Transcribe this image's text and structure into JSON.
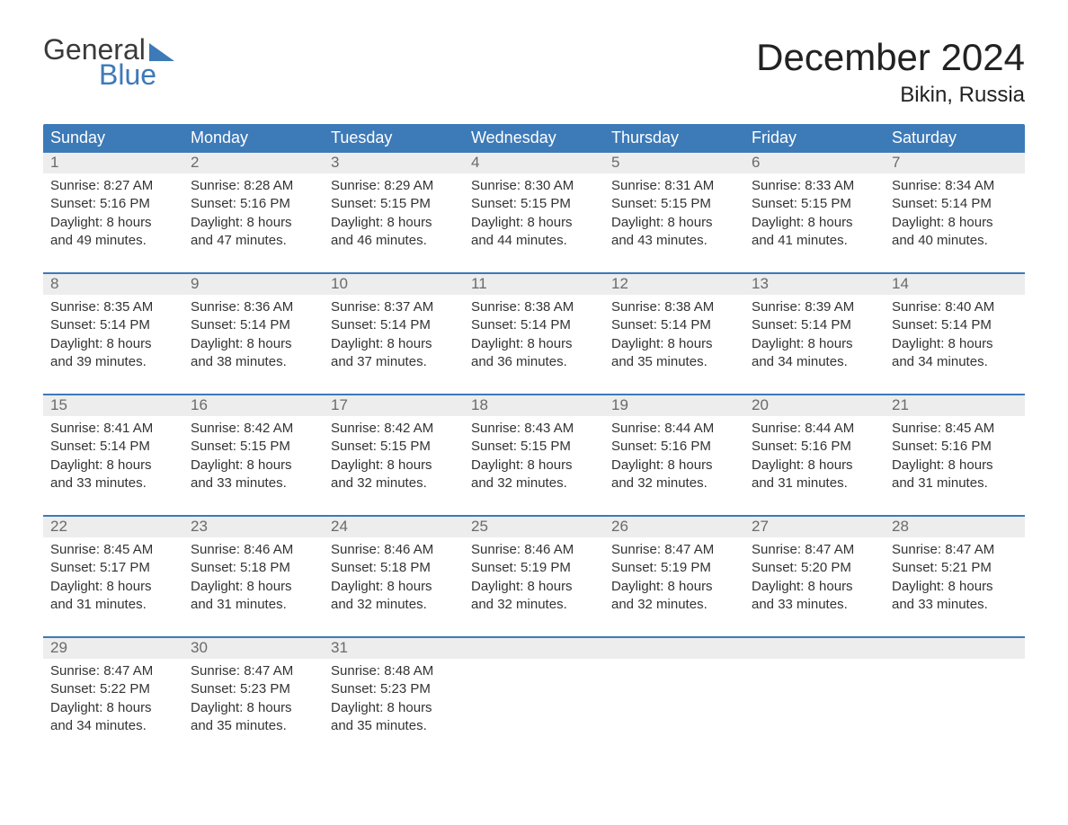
{
  "logo": {
    "text1": "General",
    "text2": "Blue",
    "tri_color": "#3d7ab8",
    "text1_color": "#3a3a3a"
  },
  "title": {
    "month": "December 2024",
    "location": "Bikin, Russia"
  },
  "colors": {
    "header_bg": "#3d7ab8",
    "header_fg": "#ffffff",
    "daynum_bg": "#ededed",
    "daynum_fg": "#6a6a6a",
    "divider": "#3d7ab8",
    "body_text": "#333333",
    "page_bg": "#ffffff"
  },
  "fonts": {
    "month_size_pt": 32,
    "loc_size_pt": 18,
    "weekday_size_pt": 14,
    "body_size_pt": 11
  },
  "weekdays": [
    "Sunday",
    "Monday",
    "Tuesday",
    "Wednesday",
    "Thursday",
    "Friday",
    "Saturday"
  ],
  "weeks": [
    [
      {
        "n": "1",
        "sr": "8:27 AM",
        "ss": "5:16 PM",
        "dl": "8 hours and 49 minutes."
      },
      {
        "n": "2",
        "sr": "8:28 AM",
        "ss": "5:16 PM",
        "dl": "8 hours and 47 minutes."
      },
      {
        "n": "3",
        "sr": "8:29 AM",
        "ss": "5:15 PM",
        "dl": "8 hours and 46 minutes."
      },
      {
        "n": "4",
        "sr": "8:30 AM",
        "ss": "5:15 PM",
        "dl": "8 hours and 44 minutes."
      },
      {
        "n": "5",
        "sr": "8:31 AM",
        "ss": "5:15 PM",
        "dl": "8 hours and 43 minutes."
      },
      {
        "n": "6",
        "sr": "8:33 AM",
        "ss": "5:15 PM",
        "dl": "8 hours and 41 minutes."
      },
      {
        "n": "7",
        "sr": "8:34 AM",
        "ss": "5:14 PM",
        "dl": "8 hours and 40 minutes."
      }
    ],
    [
      {
        "n": "8",
        "sr": "8:35 AM",
        "ss": "5:14 PM",
        "dl": "8 hours and 39 minutes."
      },
      {
        "n": "9",
        "sr": "8:36 AM",
        "ss": "5:14 PM",
        "dl": "8 hours and 38 minutes."
      },
      {
        "n": "10",
        "sr": "8:37 AM",
        "ss": "5:14 PM",
        "dl": "8 hours and 37 minutes."
      },
      {
        "n": "11",
        "sr": "8:38 AM",
        "ss": "5:14 PM",
        "dl": "8 hours and 36 minutes."
      },
      {
        "n": "12",
        "sr": "8:38 AM",
        "ss": "5:14 PM",
        "dl": "8 hours and 35 minutes."
      },
      {
        "n": "13",
        "sr": "8:39 AM",
        "ss": "5:14 PM",
        "dl": "8 hours and 34 minutes."
      },
      {
        "n": "14",
        "sr": "8:40 AM",
        "ss": "5:14 PM",
        "dl": "8 hours and 34 minutes."
      }
    ],
    [
      {
        "n": "15",
        "sr": "8:41 AM",
        "ss": "5:14 PM",
        "dl": "8 hours and 33 minutes."
      },
      {
        "n": "16",
        "sr": "8:42 AM",
        "ss": "5:15 PM",
        "dl": "8 hours and 33 minutes."
      },
      {
        "n": "17",
        "sr": "8:42 AM",
        "ss": "5:15 PM",
        "dl": "8 hours and 32 minutes."
      },
      {
        "n": "18",
        "sr": "8:43 AM",
        "ss": "5:15 PM",
        "dl": "8 hours and 32 minutes."
      },
      {
        "n": "19",
        "sr": "8:44 AM",
        "ss": "5:16 PM",
        "dl": "8 hours and 32 minutes."
      },
      {
        "n": "20",
        "sr": "8:44 AM",
        "ss": "5:16 PM",
        "dl": "8 hours and 31 minutes."
      },
      {
        "n": "21",
        "sr": "8:45 AM",
        "ss": "5:16 PM",
        "dl": "8 hours and 31 minutes."
      }
    ],
    [
      {
        "n": "22",
        "sr": "8:45 AM",
        "ss": "5:17 PM",
        "dl": "8 hours and 31 minutes."
      },
      {
        "n": "23",
        "sr": "8:46 AM",
        "ss": "5:18 PM",
        "dl": "8 hours and 31 minutes."
      },
      {
        "n": "24",
        "sr": "8:46 AM",
        "ss": "5:18 PM",
        "dl": "8 hours and 32 minutes."
      },
      {
        "n": "25",
        "sr": "8:46 AM",
        "ss": "5:19 PM",
        "dl": "8 hours and 32 minutes."
      },
      {
        "n": "26",
        "sr": "8:47 AM",
        "ss": "5:19 PM",
        "dl": "8 hours and 32 minutes."
      },
      {
        "n": "27",
        "sr": "8:47 AM",
        "ss": "5:20 PM",
        "dl": "8 hours and 33 minutes."
      },
      {
        "n": "28",
        "sr": "8:47 AM",
        "ss": "5:21 PM",
        "dl": "8 hours and 33 minutes."
      }
    ],
    [
      {
        "n": "29",
        "sr": "8:47 AM",
        "ss": "5:22 PM",
        "dl": "8 hours and 34 minutes."
      },
      {
        "n": "30",
        "sr": "8:47 AM",
        "ss": "5:23 PM",
        "dl": "8 hours and 35 minutes."
      },
      {
        "n": "31",
        "sr": "8:48 AM",
        "ss": "5:23 PM",
        "dl": "8 hours and 35 minutes."
      },
      null,
      null,
      null,
      null
    ]
  ],
  "labels": {
    "sunrise": "Sunrise: ",
    "sunset": "Sunset: ",
    "daylight": "Daylight: "
  }
}
